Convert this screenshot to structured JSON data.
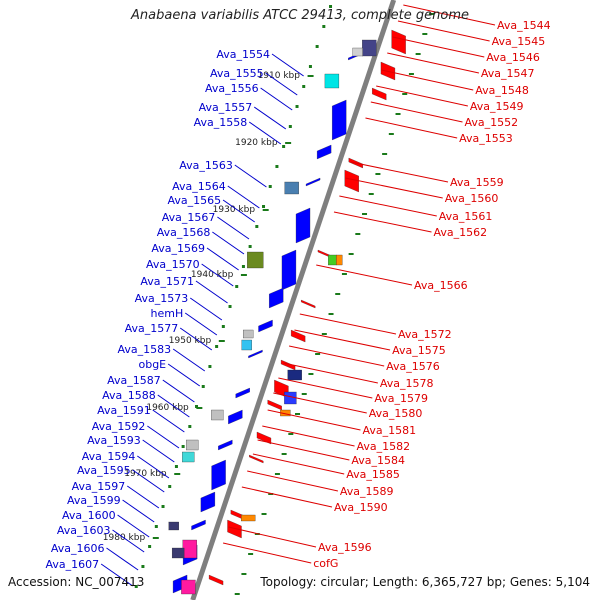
{
  "title": "Anabaena variabilis ATCC 29413, complete genome",
  "footer": {
    "accession": "Accession: NC_007413",
    "summary": "Topology: circular; Length: 6,365,727 bp; Genes: 5,104"
  },
  "colors": {
    "backbone": "#7f7f7f",
    "forward_label": "#0000cc",
    "reverse_label": "#dd0000",
    "tick": "#1a7a1a",
    "forward_arrow": "#0000ff",
    "reverse_arrow": "#ff0000"
  },
  "ticks": [
    "1910 kbp",
    "1920 kbp",
    "1930 kbp",
    "1940 kbp",
    "1950 kbp",
    "1960 kbp",
    "1970 kbp",
    "1980 kbp"
  ],
  "forward_genes": [
    "Ava_1554",
    "Ava_1555",
    "Ava_1556",
    "Ava_1557",
    "Ava_1558",
    "Ava_1563",
    "Ava_1564",
    "Ava_1565",
    "Ava_1567",
    "Ava_1568",
    "Ava_1569",
    "Ava_1570",
    "Ava_1571",
    "Ava_1573",
    "hemH",
    "Ava_1577",
    "Ava_1583",
    "obgE",
    "Ava_1587",
    "Ava_1588",
    "Ava_1591",
    "Ava_1592",
    "Ava_1593",
    "Ava_1594",
    "Ava_1595",
    "Ava_1597",
    "Ava_1599",
    "Ava_1600",
    "Ava_1603",
    "Ava_1606",
    "Ava_1607"
  ],
  "reverse_genes": [
    "Ava_1544",
    "Ava_1545",
    "Ava_1546",
    "Ava_1547",
    "Ava_1548",
    "Ava_1549",
    "Ava_1552",
    "Ava_1553",
    "Ava_1559",
    "Ava_1560",
    "Ava_1561",
    "Ava_1562",
    "Ava_1566",
    "Ava_1572",
    "Ava_1575",
    "Ava_1576",
    "Ava_1578",
    "Ava_1579",
    "Ava_1580",
    "Ava_1581",
    "Ava_1582",
    "Ava_1584",
    "Ava_1585",
    "Ava_1589",
    "Ava_1590",
    "Ava_1596",
    "cofG"
  ]
}
